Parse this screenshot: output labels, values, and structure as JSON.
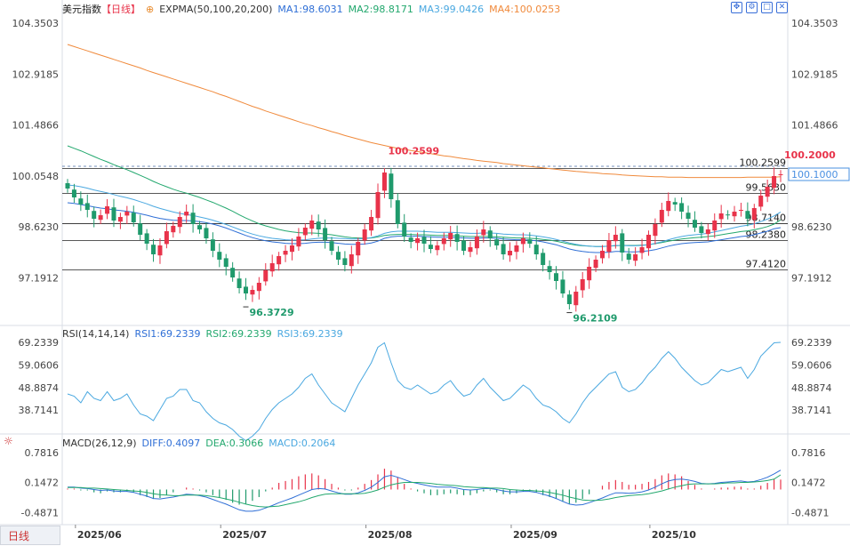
{
  "header": {
    "instrument": "美元指数",
    "period": "【日线】",
    "indicator": "EXPMA(50,100,20,200)",
    "ma1": "MA1:98.6031",
    "ma2": "MA2:98.8171",
    "ma3": "MA3:99.0426",
    "ma4": "MA4:100.0253"
  },
  "rsi_header": {
    "label": "RSI(14,14,14)",
    "r1": "RSI1:69.2339",
    "r2": "RSI2:69.2339",
    "r3": "RSI3:69.2339"
  },
  "macd_header": {
    "label": "MACD(26,12,9)",
    "diff": "DIFF:0.4097",
    "dea": "DEA:0.3066",
    "macd": "MACD:0.2064"
  },
  "bottom_tab": "日线",
  "colors": {
    "up": "#e8334a",
    "down": "#1f9a6c",
    "ma1": "#2f6fd6",
    "ma2": "#23a86e",
    "ma3": "#4aa8e0",
    "ma4": "#f08a3c",
    "price_tag": "#4a90e2"
  },
  "icons": [
    "fullscreen-icon",
    "settings-icon",
    "expand-icon",
    "close-icon",
    "settings-gear-icon"
  ],
  "chart_data": {
    "type": "candlestick",
    "main": {
      "y_ticks": [
        "104.3503",
        "102.9185",
        "101.4866",
        "100.0548",
        "98.6230",
        "97.1912"
      ],
      "ylim": [
        96.0,
        104.5
      ],
      "x_labels": [
        "2025/06",
        "2025/07",
        "2025/08",
        "2025/09",
        "2025/10"
      ],
      "hlines": [
        {
          "value": 100.2599,
          "label": "100.2599"
        },
        {
          "value": 99.563,
          "label": "99.5630"
        },
        {
          "value": 98.714,
          "label": "98.7140"
        },
        {
          "value": 98.238,
          "label": "98.2380"
        },
        {
          "value": 97.412,
          "label": "97.4120"
        }
      ],
      "annotations": [
        {
          "text": "100.2599",
          "kind": "high"
        },
        {
          "text": "96.3729",
          "kind": "low"
        },
        {
          "text": "96.2109",
          "kind": "low"
        },
        {
          "text": "100.2000",
          "kind": "high"
        }
      ],
      "current_price": "100.1000",
      "closes": [
        99.7,
        99.45,
        99.25,
        99.1,
        98.85,
        98.95,
        99.2,
        98.8,
        98.9,
        99.05,
        98.75,
        98.4,
        98.15,
        97.85,
        98.1,
        98.5,
        98.65,
        98.9,
        99.05,
        98.7,
        98.55,
        98.3,
        97.95,
        97.7,
        97.5,
        97.2,
        96.9,
        96.75,
        96.85,
        97.05,
        97.4,
        97.6,
        97.8,
        97.95,
        98.1,
        98.35,
        98.6,
        98.8,
        98.55,
        98.25,
        97.95,
        97.7,
        97.55,
        97.85,
        98.2,
        98.55,
        98.9,
        99.6,
        100.15,
        99.4,
        98.7,
        98.35,
        98.2,
        98.3,
        98.15,
        98.0,
        98.1,
        98.3,
        98.45,
        98.2,
        97.95,
        98.05,
        98.35,
        98.55,
        98.3,
        98.1,
        97.85,
        97.95,
        98.1,
        98.3,
        98.15,
        97.85,
        97.55,
        97.35,
        97.1,
        96.75,
        96.45,
        96.8,
        97.15,
        97.5,
        97.7,
        97.95,
        98.25,
        98.4,
        97.9,
        97.7,
        97.85,
        98.05,
        98.4,
        98.7,
        99.1,
        99.35,
        99.25,
        99.05,
        98.85,
        98.6,
        98.45,
        98.55,
        98.8,
        99.0,
        98.95,
        99.05,
        99.1,
        98.85,
        99.15,
        99.5,
        99.75,
        100.05,
        100.1
      ],
      "series": [
        {
          "name": "MA1",
          "values": [
            99.3,
            99.28,
            99.25,
            99.22,
            99.18,
            99.15,
            99.13,
            99.1,
            99.08,
            99.06,
            99.03,
            98.99,
            98.95,
            98.9,
            98.86,
            98.83,
            98.81,
            98.8,
            98.8,
            98.79,
            98.77,
            98.74,
            98.7,
            98.65,
            98.59,
            98.52,
            98.45,
            98.38,
            98.32,
            98.27,
            98.23,
            98.2,
            98.18,
            98.16,
            98.15,
            98.15,
            98.16,
            98.18,
            98.19,
            98.19,
            98.18,
            98.16,
            98.14,
            98.13,
            98.13,
            98.14,
            98.17,
            98.22,
            98.3,
            98.34,
            98.36,
            98.36,
            98.36,
            98.36,
            98.35,
            98.34,
            98.33,
            98.33,
            98.33,
            98.32,
            98.31,
            98.3,
            98.3,
            98.31,
            98.31,
            98.3,
            98.28,
            98.27,
            98.26,
            98.26,
            98.25,
            98.23,
            98.2,
            98.16,
            98.12,
            98.06,
            98.0,
            97.96,
            97.93,
            97.91,
            97.9,
            97.9,
            97.91,
            97.93,
            97.93,
            97.92,
            97.92,
            97.93,
            97.95,
            97.98,
            98.03,
            98.08,
            98.12,
            98.15,
            98.17,
            98.18,
            98.19,
            98.2,
            98.23,
            98.26,
            98.29,
            98.32,
            98.35,
            98.37,
            98.4,
            98.45,
            98.5,
            98.57,
            98.6
          ]
        },
        {
          "name": "MA2",
          "values": [
            100.9,
            100.83,
            100.76,
            100.68,
            100.6,
            100.52,
            100.45,
            100.37,
            100.3,
            100.23,
            100.15,
            100.07,
            99.99,
            99.9,
            99.82,
            99.75,
            99.68,
            99.62,
            99.57,
            99.51,
            99.45,
            99.38,
            99.31,
            99.23,
            99.15,
            99.06,
            98.96,
            98.87,
            98.79,
            98.71,
            98.65,
            98.6,
            98.55,
            98.51,
            98.48,
            98.46,
            98.45,
            98.45,
            98.44,
            98.42,
            98.4,
            98.37,
            98.34,
            98.32,
            98.31,
            98.3,
            98.31,
            98.34,
            98.38,
            98.4,
            98.41,
            98.41,
            98.41,
            98.4,
            98.4,
            98.39,
            98.38,
            98.38,
            98.38,
            98.37,
            98.36,
            98.35,
            98.35,
            98.35,
            98.35,
            98.34,
            98.33,
            98.32,
            98.31,
            98.31,
            98.3,
            98.29,
            98.27,
            98.25,
            98.22,
            98.18,
            98.14,
            98.11,
            98.09,
            98.08,
            98.07,
            98.07,
            98.08,
            98.09,
            98.1,
            98.1,
            98.1,
            98.11,
            98.12,
            98.15,
            98.18,
            98.22,
            98.25,
            98.28,
            98.3,
            98.32,
            98.33,
            98.35,
            98.37,
            98.4,
            98.43,
            98.46,
            98.49,
            98.51,
            98.54,
            98.58,
            98.63,
            98.7,
            98.82
          ]
        },
        {
          "name": "MA3",
          "values": [
            99.8,
            99.78,
            99.75,
            99.71,
            99.66,
            99.62,
            99.58,
            99.53,
            99.48,
            99.44,
            99.39,
            99.33,
            99.27,
            99.2,
            99.14,
            99.09,
            99.04,
            99.0,
            98.97,
            98.94,
            98.9,
            98.86,
            98.81,
            98.75,
            98.69,
            98.62,
            98.55,
            98.48,
            98.42,
            98.37,
            98.33,
            98.3,
            98.28,
            98.26,
            98.25,
            98.25,
            98.26,
            98.28,
            98.3,
            98.31,
            98.31,
            98.3,
            98.29,
            98.28,
            98.28,
            98.29,
            98.32,
            98.37,
            98.44,
            98.48,
            98.5,
            98.5,
            98.5,
            98.5,
            98.49,
            98.48,
            98.47,
            98.47,
            98.47,
            98.46,
            98.45,
            98.44,
            98.44,
            98.45,
            98.45,
            98.44,
            98.42,
            98.41,
            98.4,
            98.4,
            98.39,
            98.37,
            98.34,
            98.31,
            98.27,
            98.22,
            98.17,
            98.13,
            98.1,
            98.08,
            98.07,
            98.07,
            98.08,
            98.1,
            98.1,
            98.09,
            98.09,
            98.1,
            98.12,
            98.16,
            98.2,
            98.26,
            98.31,
            98.35,
            98.38,
            98.4,
            98.42,
            98.44,
            98.48,
            98.52,
            98.56,
            98.6,
            98.64,
            98.67,
            98.71,
            98.77,
            98.84,
            98.93,
            99.04
          ]
        },
        {
          "name": "MA4",
          "values": [
            103.75,
            103.69,
            103.63,
            103.57,
            103.51,
            103.45,
            103.39,
            103.33,
            103.27,
            103.21,
            103.15,
            103.09,
            103.02,
            102.96,
            102.9,
            102.84,
            102.78,
            102.72,
            102.66,
            102.6,
            102.54,
            102.48,
            102.42,
            102.35,
            102.29,
            102.22,
            102.15,
            102.08,
            102.01,
            101.95,
            101.88,
            101.82,
            101.76,
            101.7,
            101.64,
            101.58,
            101.52,
            101.47,
            101.41,
            101.36,
            101.3,
            101.25,
            101.19,
            101.14,
            101.09,
            101.04,
            100.99,
            100.95,
            100.91,
            100.87,
            100.83,
            100.8,
            100.77,
            100.74,
            100.71,
            100.68,
            100.65,
            100.62,
            100.6,
            100.57,
            100.54,
            100.52,
            100.49,
            100.47,
            100.45,
            100.43,
            100.4,
            100.38,
            100.36,
            100.34,
            100.32,
            100.3,
            100.28,
            100.26,
            100.24,
            100.22,
            100.2,
            100.18,
            100.17,
            100.15,
            100.14,
            100.12,
            100.11,
            100.1,
            100.08,
            100.07,
            100.06,
            100.05,
            100.04,
            100.03,
            100.03,
            100.02,
            100.02,
            100.02,
            100.01,
            100.01,
            100.01,
            100.01,
            100.01,
            100.01,
            100.01,
            100.01,
            100.01,
            100.02,
            100.02,
            100.02,
            100.02,
            100.02,
            100.03
          ]
        }
      ]
    },
    "rsi": {
      "y_ticks": [
        "69.2339",
        "59.0606",
        "48.8874",
        "38.7141"
      ],
      "ylim": [
        32,
        72
      ],
      "values": [
        46,
        45,
        42,
        47,
        44,
        43,
        47,
        43,
        44,
        46,
        41,
        37,
        36,
        34,
        39,
        44,
        45,
        48,
        48,
        43,
        42,
        38,
        35,
        33,
        32,
        30,
        27,
        25,
        27,
        30,
        35,
        39,
        42,
        44,
        46,
        49,
        53,
        55,
        50,
        46,
        42,
        40,
        38,
        44,
        50,
        55,
        60,
        67,
        69,
        60,
        52,
        49,
        48,
        50,
        48,
        46,
        47,
        50,
        52,
        48,
        45,
        46,
        50,
        53,
        49,
        46,
        43,
        44,
        47,
        50,
        48,
        44,
        41,
        40,
        38,
        35,
        33,
        37,
        42,
        46,
        49,
        52,
        55,
        56,
        49,
        47,
        48,
        51,
        55,
        58,
        62,
        65,
        62,
        58,
        55,
        52,
        50,
        51,
        54,
        57,
        56,
        57,
        58,
        53,
        57,
        63,
        66,
        69,
        69.2
      ]
    },
    "macd": {
      "y_ticks": [
        "0.7816",
        "0.1472",
        "-0.4871"
      ],
      "ylim": [
        -0.65,
        0.95
      ],
      "diff": [
        0.05,
        0.05,
        0.03,
        0.02,
        0.0,
        -0.02,
        -0.01,
        -0.03,
        -0.04,
        -0.04,
        -0.06,
        -0.1,
        -0.14,
        -0.19,
        -0.2,
        -0.18,
        -0.16,
        -0.13,
        -0.1,
        -0.11,
        -0.13,
        -0.16,
        -0.21,
        -0.26,
        -0.31,
        -0.37,
        -0.43,
        -0.46,
        -0.46,
        -0.44,
        -0.39,
        -0.34,
        -0.28,
        -0.23,
        -0.18,
        -0.12,
        -0.06,
        0.0,
        0.02,
        0.01,
        -0.03,
        -0.07,
        -0.1,
        -0.1,
        -0.07,
        -0.02,
        0.05,
        0.15,
        0.27,
        0.3,
        0.26,
        0.21,
        0.16,
        0.13,
        0.1,
        0.07,
        0.05,
        0.05,
        0.05,
        0.03,
        0.0,
        -0.01,
        0.0,
        0.02,
        0.02,
        0.0,
        -0.03,
        -0.05,
        -0.05,
        -0.04,
        -0.04,
        -0.06,
        -0.1,
        -0.14,
        -0.19,
        -0.25,
        -0.31,
        -0.33,
        -0.32,
        -0.28,
        -0.23,
        -0.18,
        -0.12,
        -0.07,
        -0.07,
        -0.08,
        -0.07,
        -0.05,
        -0.01,
        0.05,
        0.12,
        0.18,
        0.21,
        0.22,
        0.2,
        0.17,
        0.13,
        0.12,
        0.13,
        0.15,
        0.16,
        0.17,
        0.18,
        0.16,
        0.17,
        0.21,
        0.26,
        0.33,
        0.41
      ],
      "dea": [
        0.04,
        0.04,
        0.04,
        0.03,
        0.03,
        0.02,
        0.01,
        0.0,
        -0.01,
        -0.02,
        -0.03,
        -0.04,
        -0.06,
        -0.09,
        -0.11,
        -0.12,
        -0.13,
        -0.13,
        -0.12,
        -0.12,
        -0.12,
        -0.13,
        -0.15,
        -0.17,
        -0.2,
        -0.23,
        -0.27,
        -0.31,
        -0.34,
        -0.36,
        -0.37,
        -0.36,
        -0.35,
        -0.32,
        -0.29,
        -0.26,
        -0.22,
        -0.17,
        -0.13,
        -0.1,
        -0.09,
        -0.09,
        -0.09,
        -0.09,
        -0.09,
        -0.08,
        -0.05,
        -0.01,
        0.05,
        0.1,
        0.13,
        0.15,
        0.15,
        0.15,
        0.14,
        0.13,
        0.11,
        0.1,
        0.09,
        0.08,
        0.06,
        0.05,
        0.04,
        0.04,
        0.03,
        0.03,
        0.02,
        0.0,
        -0.01,
        -0.02,
        -0.02,
        -0.03,
        -0.04,
        -0.06,
        -0.09,
        -0.12,
        -0.16,
        -0.19,
        -0.22,
        -0.23,
        -0.23,
        -0.22,
        -0.2,
        -0.17,
        -0.15,
        -0.13,
        -0.12,
        -0.11,
        -0.09,
        -0.06,
        -0.03,
        0.01,
        0.05,
        0.08,
        0.11,
        0.12,
        0.12,
        0.12,
        0.12,
        0.13,
        0.14,
        0.14,
        0.15,
        0.15,
        0.16,
        0.17,
        0.19,
        0.22,
        0.31
      ],
      "hist": [
        0.02,
        0.02,
        -0.02,
        -0.02,
        -0.06,
        -0.08,
        -0.04,
        -0.06,
        -0.06,
        -0.04,
        -0.06,
        -0.12,
        -0.16,
        -0.2,
        -0.18,
        -0.12,
        -0.06,
        0.0,
        0.04,
        0.02,
        -0.02,
        -0.06,
        -0.12,
        -0.18,
        -0.22,
        -0.28,
        -0.32,
        -0.3,
        -0.24,
        -0.16,
        -0.04,
        0.04,
        0.14,
        0.18,
        0.22,
        0.28,
        0.32,
        0.34,
        0.3,
        0.22,
        0.12,
        0.04,
        -0.02,
        -0.02,
        0.04,
        0.12,
        0.2,
        0.32,
        0.44,
        0.4,
        0.26,
        0.12,
        0.02,
        -0.04,
        -0.08,
        -0.12,
        -0.12,
        -0.1,
        -0.08,
        -0.1,
        -0.12,
        -0.12,
        -0.08,
        -0.04,
        -0.02,
        -0.06,
        -0.1,
        -0.1,
        -0.08,
        -0.04,
        -0.04,
        -0.06,
        -0.12,
        -0.16,
        -0.2,
        -0.26,
        -0.3,
        -0.28,
        -0.2,
        -0.1,
        0.0,
        0.08,
        0.16,
        0.2,
        0.16,
        0.1,
        0.1,
        0.12,
        0.16,
        0.22,
        0.3,
        0.34,
        0.32,
        0.28,
        0.18,
        0.1,
        0.02,
        0.0,
        0.02,
        0.04,
        0.04,
        0.06,
        0.06,
        0.02,
        0.02,
        0.08,
        0.14,
        0.22,
        0.21
      ]
    }
  }
}
